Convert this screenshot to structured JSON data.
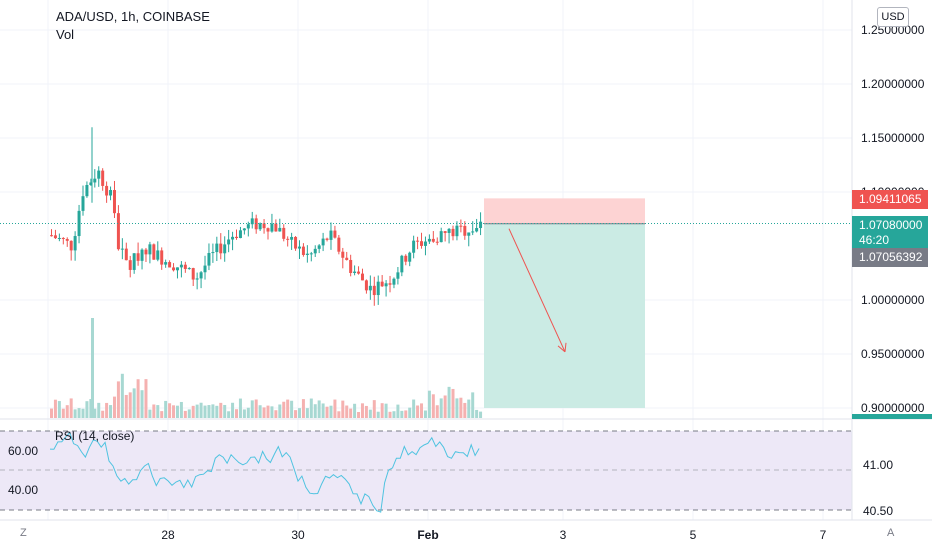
{
  "header": {
    "title": "ADA/USD, 1h, COINBASE",
    "volume_label": "Vol",
    "currency": "USD"
  },
  "price_axis": {
    "ticks": [
      "1.25000000",
      "1.20000000",
      "1.15000000",
      "1.10000000",
      "1.00000000",
      "0.95000000",
      "0.90000000"
    ],
    "tick_values": [
      1.25,
      1.2,
      1.15,
      1.1,
      1.0,
      0.95,
      0.9
    ]
  },
  "price_labels": {
    "stop": "1.09411065",
    "last": "1.07080000",
    "countdown": "46:20",
    "entry": "1.07056392"
  },
  "rsi": {
    "label": "RSI (14, close)",
    "left_ticks": [
      "60.00",
      "40.00"
    ],
    "right_ticks": [
      "41.00",
      "40.50"
    ]
  },
  "time_axis": {
    "ticks": [
      "28",
      "30",
      "Feb",
      "3",
      "5",
      "7"
    ]
  },
  "corners": {
    "left": "Z",
    "right": "A"
  },
  "colors": {
    "up": "#26a69a",
    "down": "#ef5350",
    "stop_zone": "#fdd3d3",
    "target_zone": "#cbebe4",
    "rsi_line": "#4fc3e0",
    "rsi_band": "#ede8f7",
    "arrow": "#ef5350"
  },
  "chart_data": {
    "type": "candlestick",
    "symbol": "ADA/USD",
    "interval": "1h",
    "exchange": "COINBASE",
    "last_price": 1.0708,
    "short_position": {
      "entry": 1.07056392,
      "stop": 1.09411065,
      "target": 0.9,
      "start_x_position": "near Feb 1",
      "end_x_position": "near Feb 4"
    },
    "trend_arrow": {
      "from": [
        1.066,
        "Feb 1"
      ],
      "to": [
        0.952,
        "Feb 3"
      ]
    },
    "rsi_levels": [
      40,
      60
    ],
    "price_ylim": [
      0.9,
      1.25
    ]
  }
}
